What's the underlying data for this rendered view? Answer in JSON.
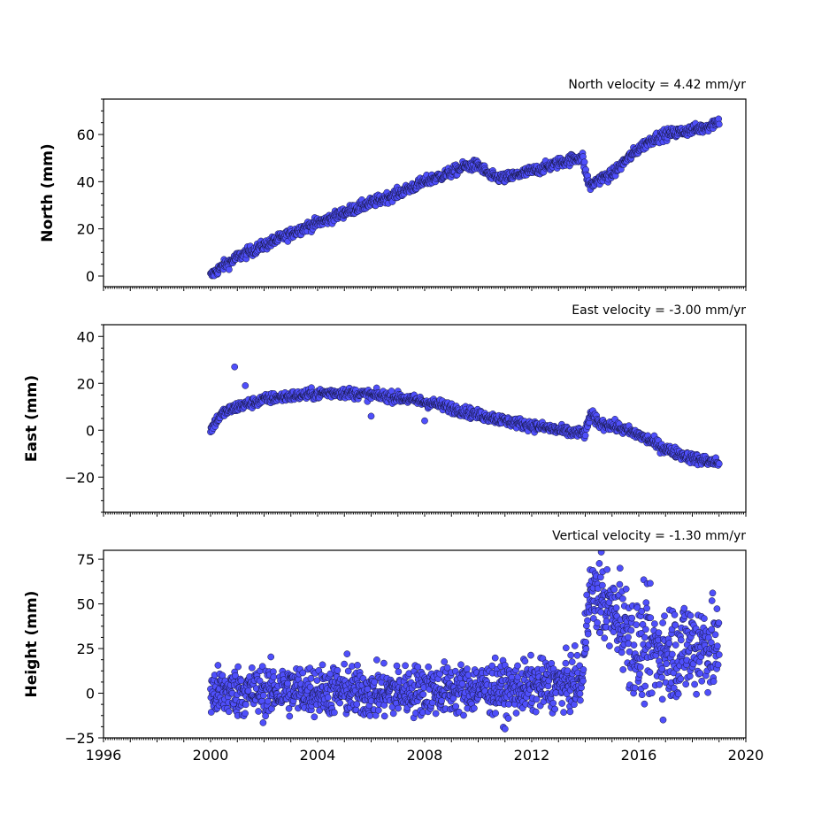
{
  "chart_data": [
    {
      "type": "scatter",
      "title": "North velocity = 4.42 mm/yr",
      "ylabel": "North (mm)",
      "xlim": [
        1996,
        2020
      ],
      "ylim": [
        -4.5,
        75
      ],
      "yticks": [
        0,
        20,
        40,
        60
      ],
      "yticklabels": [
        "0",
        "20",
        "40",
        "60"
      ],
      "xticks": [
        1996,
        2000,
        2004,
        2008,
        2012,
        2016,
        2020
      ],
      "xticklabels": [],
      "color": "#4f4ffb",
      "series": [
        {
          "x": [
            2000.0,
            2000.25,
            2000.5,
            2000.75,
            2001.0,
            2001.5,
            2002.0,
            2002.5,
            2003.0,
            2003.5,
            2004.0,
            2004.5,
            2005.0,
            2005.5,
            2006.0,
            2006.5,
            2007.0,
            2007.5,
            2008.0,
            2008.5,
            2009.0,
            2009.5,
            2010.0,
            2010.3,
            2010.5,
            2011.0,
            2011.5,
            2012.0,
            2012.5,
            2013.0,
            2013.5,
            2013.9,
            2014.05,
            2014.2,
            2014.5,
            2015.0,
            2015.5,
            2016.0,
            2016.5,
            2017.0,
            2017.5,
            2018.0,
            2018.5,
            2019.0
          ],
          "y": [
            0,
            2.5,
            4.5,
            6,
            8,
            10.5,
            13,
            15.5,
            18,
            20.5,
            22.5,
            24.5,
            27,
            29,
            31,
            33,
            35,
            37.5,
            40,
            42,
            44,
            46.5,
            47,
            44,
            42,
            41.5,
            43,
            44.5,
            46,
            48,
            49.5,
            50.5,
            42,
            38,
            41,
            43,
            49,
            54,
            58,
            60,
            61,
            62,
            63,
            66
          ]
        }
      ]
    },
    {
      "type": "scatter",
      "title": "East velocity = -3.00 mm/yr",
      "ylabel": "East (mm)",
      "xlim": [
        1996,
        2020
      ],
      "ylim": [
        -35,
        45
      ],
      "yticks": [
        -20,
        0,
        20,
        40
      ],
      "yticklabels": [
        "−20",
        "0",
        "20",
        "40"
      ],
      "xticks": [
        1996,
        2000,
        2004,
        2008,
        2012,
        2016,
        2020
      ],
      "xticklabels": [],
      "color": "#4f4ffb",
      "series": [
        {
          "x": [
            2000.0,
            2000.2,
            2000.5,
            2001.0,
            2001.5,
            2002.0,
            2002.5,
            2003.0,
            2003.5,
            2004.0,
            2004.5,
            2005.0,
            2005.5,
            2006.0,
            2006.5,
            2007.0,
            2007.5,
            2008.0,
            2008.5,
            2009.0,
            2009.5,
            2010.0,
            2010.5,
            2011.0,
            2011.5,
            2012.0,
            2012.5,
            2013.0,
            2013.5,
            2014.0,
            2014.2,
            2014.5,
            2015.0,
            2015.5,
            2016.0,
            2016.5,
            2017.0,
            2017.5,
            2018.0,
            2018.5,
            2019.0
          ],
          "y": [
            0,
            4,
            7.5,
            10,
            11.5,
            13,
            14,
            14.5,
            15,
            15.5,
            16,
            16,
            15.5,
            15,
            14.5,
            14,
            13,
            12,
            11,
            9.5,
            8,
            6.5,
            5.5,
            4,
            3,
            2,
            1,
            0,
            -1,
            -1.5,
            7,
            3,
            2,
            0,
            -2,
            -5,
            -8,
            -10,
            -12,
            -13,
            -14
          ],
          "outliers": [
            [
              2000.9,
              27
            ],
            [
              2001.3,
              19
            ],
            [
              2006.0,
              6
            ],
            [
              2008.0,
              4
            ]
          ]
        }
      ]
    },
    {
      "type": "scatter",
      "title": "Vertical velocity = -1.30 mm/yr",
      "ylabel": "Height (mm)",
      "xlabel": "",
      "xlim": [
        1996,
        2020
      ],
      "ylim": [
        -25,
        80
      ],
      "yticks": [
        -25,
        0,
        25,
        50,
        75
      ],
      "yticklabels": [
        "−25",
        "0",
        "25",
        "50",
        "75"
      ],
      "xticks": [
        1996,
        2000,
        2004,
        2008,
        2012,
        2016,
        2020
      ],
      "xticklabels": [
        "1996",
        "2000",
        "2004",
        "2008",
        "2012",
        "2016",
        "2020"
      ],
      "color": "#4f4ffb",
      "series": [
        {
          "x": [
            2000.0,
            2001.0,
            2002.0,
            2003.0,
            2004.0,
            2005.0,
            2006.0,
            2007.0,
            2008.0,
            2009.0,
            2010.0,
            2011.0,
            2012.0,
            2013.0,
            2013.9,
            2014.1,
            2014.5,
            2015.0,
            2015.5,
            2015.9,
            2016.2,
            2016.5,
            2017.0,
            2017.5,
            2018.0,
            2018.5,
            2019.0
          ],
          "y": [
            0,
            1,
            1,
            2,
            2,
            1,
            0,
            1,
            2,
            2,
            3,
            2,
            4,
            5,
            6,
            55,
            53,
            45,
            38,
            22,
            26,
            24,
            22,
            25,
            26,
            28,
            24
          ],
          "spread": [
            7,
            7,
            7,
            7,
            7,
            7,
            7,
            7,
            7,
            7,
            7,
            7,
            7,
            7,
            7,
            10,
            10,
            10,
            12,
            14,
            14,
            14,
            14,
            14,
            14,
            14,
            12
          ],
          "outliers": [
            [
              2014.6,
              79
            ],
            [
              2015.3,
              70
            ],
            [
              2005.1,
              22
            ],
            [
              2011.0,
              -20
            ]
          ]
        }
      ]
    }
  ]
}
